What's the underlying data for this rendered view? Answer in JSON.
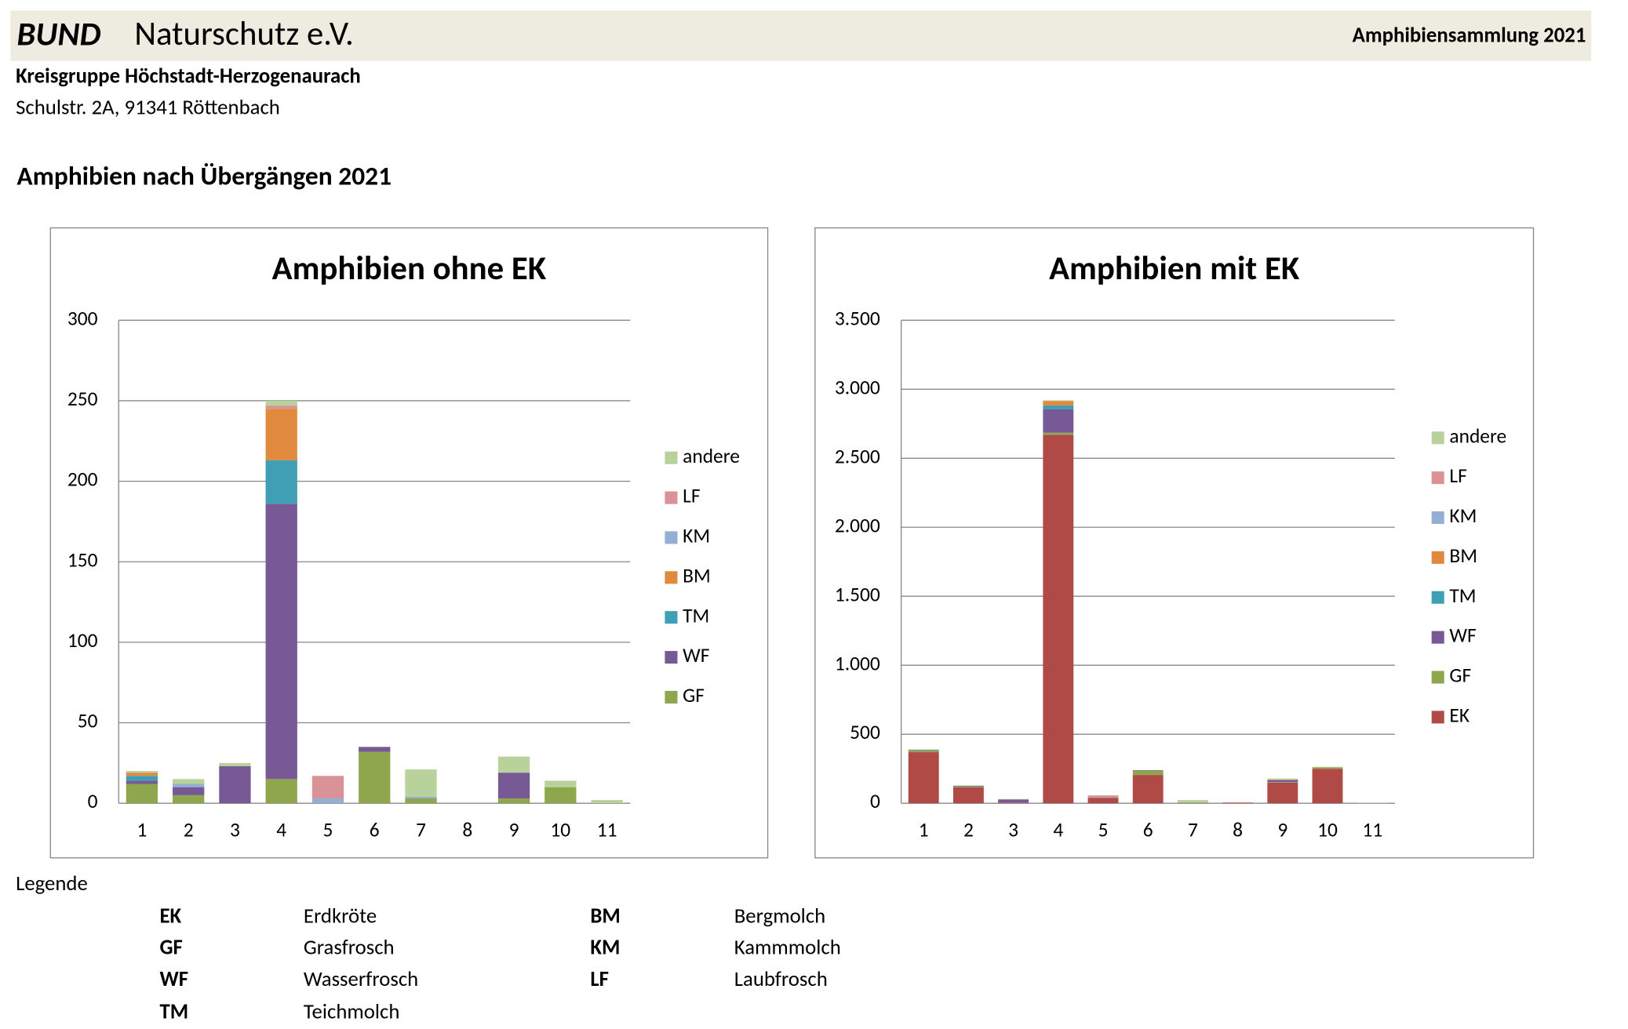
{
  "header": {
    "brand": "BUND",
    "org": "Naturschutz e.V.",
    "right": "Amphibiensammlung 2021",
    "group": "Kreisgruppe Höchstadt-Herzogenaurach",
    "address": "Schulstr. 2A, 91341 Röttenbach",
    "section": "Amphibien nach Übergängen 2021"
  },
  "chart_data": [
    {
      "type": "bar",
      "stacked": true,
      "title": "Amphibien ohne EK",
      "categories": [
        "1",
        "2",
        "3",
        "4",
        "5",
        "6",
        "7",
        "8",
        "9",
        "10",
        "11"
      ],
      "ylim": [
        0,
        300
      ],
      "yticks": [
        0,
        50,
        100,
        150,
        200,
        250,
        300
      ],
      "grid": true,
      "legend": "right",
      "series": [
        {
          "name": "GF",
          "color": "#8ea64c",
          "values": [
            12,
            5,
            0,
            15,
            0,
            32,
            3,
            0,
            3,
            10,
            0
          ]
        },
        {
          "name": "WF",
          "color": "#775a95",
          "values": [
            2,
            5,
            23,
            171,
            0,
            3,
            0,
            0,
            16,
            0,
            0
          ]
        },
        {
          "name": "TM",
          "color": "#3f9fb5",
          "values": [
            3,
            0,
            0,
            27,
            0,
            0,
            0,
            0,
            0,
            0,
            0
          ]
        },
        {
          "name": "BM",
          "color": "#e08a3e",
          "values": [
            2,
            0,
            0,
            32,
            0,
            0,
            0,
            0,
            0,
            0,
            0
          ]
        },
        {
          "name": "KM",
          "color": "#94aed4",
          "values": [
            0,
            2,
            0,
            0,
            3,
            0,
            1,
            0,
            0,
            0,
            0
          ]
        },
        {
          "name": "LF",
          "color": "#d99396",
          "values": [
            0,
            0,
            0,
            2,
            14,
            0,
            0,
            0,
            0,
            0,
            0
          ]
        },
        {
          "name": "andere",
          "color": "#b9d29b",
          "values": [
            1,
            3,
            2,
            3,
            0,
            0,
            17,
            0,
            10,
            4,
            2
          ]
        }
      ]
    },
    {
      "type": "bar",
      "stacked": true,
      "title": "Amphibien mit EK",
      "categories": [
        "1",
        "2",
        "3",
        "4",
        "5",
        "6",
        "7",
        "8",
        "9",
        "10",
        "11"
      ],
      "ylim": [
        0,
        3500
      ],
      "yticks": [
        0,
        500,
        {
          "value": 1000,
          "label": "1.000"
        },
        {
          "value": 1500,
          "label": "1.500"
        },
        {
          "value": 2000,
          "label": "2.000"
        },
        {
          "value": 2500,
          "label": "2.500"
        },
        {
          "value": 3000,
          "label": "3.000"
        },
        {
          "value": 3500,
          "label": "3.500"
        }
      ],
      "grid": true,
      "legend": "right",
      "series": [
        {
          "name": "EK",
          "color": "#b04a47",
          "values": [
            370,
            115,
            5,
            2670,
            40,
            205,
            2,
            5,
            150,
            250,
            0
          ]
        },
        {
          "name": "GF",
          "color": "#8ea64c",
          "values": [
            12,
            5,
            0,
            15,
            0,
            32,
            3,
            0,
            3,
            10,
            0
          ]
        },
        {
          "name": "WF",
          "color": "#775a95",
          "values": [
            2,
            5,
            23,
            171,
            0,
            3,
            0,
            0,
            16,
            0,
            0
          ]
        },
        {
          "name": "TM",
          "color": "#3f9fb5",
          "values": [
            3,
            0,
            0,
            27,
            0,
            0,
            0,
            0,
            0,
            0,
            0
          ]
        },
        {
          "name": "BM",
          "color": "#e08a3e",
          "values": [
            2,
            0,
            0,
            32,
            0,
            0,
            0,
            0,
            0,
            0,
            0
          ]
        },
        {
          "name": "KM",
          "color": "#94aed4",
          "values": [
            0,
            2,
            0,
            0,
            3,
            0,
            1,
            0,
            0,
            0,
            0
          ]
        },
        {
          "name": "LF",
          "color": "#d99396",
          "values": [
            0,
            0,
            0,
            2,
            14,
            0,
            0,
            0,
            0,
            0,
            0
          ]
        },
        {
          "name": "andere",
          "color": "#b9d29b",
          "values": [
            1,
            3,
            2,
            3,
            0,
            0,
            17,
            0,
            10,
            4,
            2
          ]
        }
      ]
    }
  ],
  "legend": {
    "title": "Legende",
    "entries": [
      {
        "abbr": "EK",
        "name": "Erdkröte"
      },
      {
        "abbr": "GF",
        "name": "Grasfrosch"
      },
      {
        "abbr": "WF",
        "name": "Wasserfrosch"
      },
      {
        "abbr": "TM",
        "name": "Teichmolch"
      },
      {
        "abbr": "BM",
        "name": "Bergmolch"
      },
      {
        "abbr": "KM",
        "name": "Kammmolch"
      },
      {
        "abbr": "LF",
        "name": "Laubfrosch"
      }
    ]
  }
}
